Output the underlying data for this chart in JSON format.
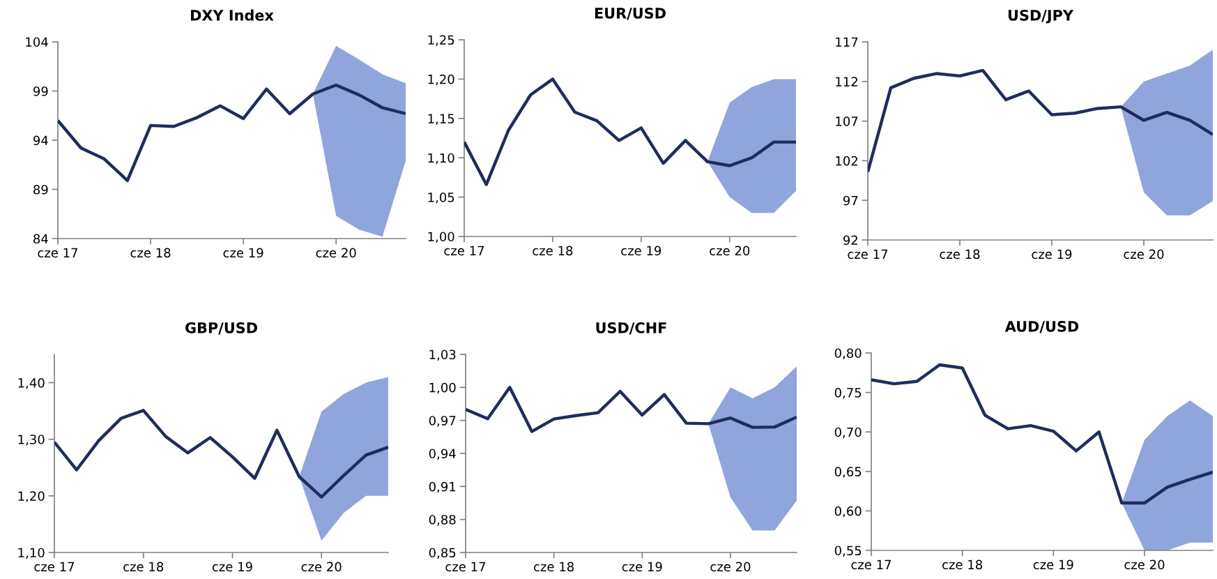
{
  "chart_data": [
    {
      "type": "line",
      "title": "DXY Index",
      "xlim": [
        "2017-06",
        "2021-03"
      ],
      "xticks": [
        {
          "value": "2017-06",
          "label": "cze 17"
        },
        {
          "value": "2018-06",
          "label": "cze 18"
        },
        {
          "value": "2019-06",
          "label": "cze 19"
        },
        {
          "value": "2020-06",
          "label": "cze 20"
        }
      ],
      "ylim": [
        84,
        104
      ],
      "yticks": [
        84,
        89,
        94,
        99,
        104
      ],
      "grid": false,
      "legend": false,
      "x": [
        "2017-06",
        "2017-09",
        "2017-12",
        "2018-03",
        "2018-06",
        "2018-09",
        "2018-12",
        "2019-03",
        "2019-06",
        "2019-09",
        "2019-12",
        "2020-03",
        "2020-06",
        "2020-09",
        "2020-12",
        "2021-03"
      ],
      "series": [
        {
          "color": "#1f2d5c",
          "values": [
            96.0,
            93.2,
            92.1,
            89.9,
            95.5,
            95.4,
            96.3,
            97.5,
            96.2,
            99.2,
            96.7,
            98.7,
            99.6,
            98.6,
            97.3,
            96.7
          ],
          "lower": [
            null,
            null,
            null,
            null,
            null,
            null,
            null,
            null,
            null,
            null,
            null,
            98.7,
            86.3,
            84.9,
            84.2,
            91.9
          ],
          "upper": [
            null,
            null,
            null,
            null,
            null,
            null,
            null,
            null,
            null,
            null,
            null,
            98.7,
            103.6,
            102.2,
            100.7,
            99.8
          ]
        }
      ]
    },
    {
      "type": "line",
      "title": "EUR/USD",
      "xlim": [
        "2017-06",
        "2021-03"
      ],
      "xticks": [
        {
          "value": "2017-06",
          "label": "cze 17"
        },
        {
          "value": "2018-06",
          "label": "cze 18"
        },
        {
          "value": "2019-06",
          "label": "cze 19"
        },
        {
          "value": "2020-06",
          "label": "cze 20"
        }
      ],
      "ylim": [
        1.0,
        1.25
      ],
      "yticks": [
        {
          "value": 1.0,
          "label": "1,00"
        },
        {
          "value": 1.05,
          "label": "1,05"
        },
        {
          "value": 1.1,
          "label": "1,10"
        },
        {
          "value": 1.15,
          "label": "1,15"
        },
        {
          "value": 1.2,
          "label": "1,20"
        },
        {
          "value": 1.25,
          "label": "1,25"
        }
      ],
      "grid": false,
      "legend": false,
      "x": [
        "2017-06",
        "2017-09",
        "2017-12",
        "2018-03",
        "2018-06",
        "2018-09",
        "2018-12",
        "2019-03",
        "2019-06",
        "2019-09",
        "2019-12",
        "2020-03",
        "2020-06",
        "2020-09",
        "2020-12",
        "2021-03"
      ],
      "series": [
        {
          "color": "#1f2d5c",
          "values": [
            1.12,
            1.066,
            1.135,
            1.18,
            1.2,
            1.158,
            1.147,
            1.122,
            1.138,
            1.093,
            1.122,
            1.095,
            1.09,
            1.1,
            1.12,
            1.12
          ],
          "lower": [
            null,
            null,
            null,
            null,
            null,
            null,
            null,
            null,
            null,
            null,
            null,
            1.095,
            1.05,
            1.03,
            1.03,
            1.058
          ],
          "upper": [
            null,
            null,
            null,
            null,
            null,
            null,
            null,
            null,
            null,
            null,
            null,
            1.095,
            1.17,
            1.19,
            1.2,
            1.2
          ]
        }
      ]
    },
    {
      "type": "line",
      "title": "USD/JPY",
      "xlim": [
        "2017-06",
        "2021-03"
      ],
      "xticks": [
        {
          "value": "2017-06",
          "label": "cze 17"
        },
        {
          "value": "2018-06",
          "label": "cze 18"
        },
        {
          "value": "2019-06",
          "label": "cze 19"
        },
        {
          "value": "2020-06",
          "label": "cze 20"
        }
      ],
      "ylim": [
        92,
        117
      ],
      "yticks": [
        92,
        97,
        102,
        107,
        112,
        117
      ],
      "grid": false,
      "legend": false,
      "x": [
        "2017-06",
        "2017-09",
        "2017-12",
        "2018-03",
        "2018-06",
        "2018-09",
        "2018-12",
        "2019-03",
        "2019-06",
        "2019-09",
        "2019-12",
        "2020-03",
        "2020-06",
        "2020-09",
        "2020-12",
        "2021-03"
      ],
      "series": [
        {
          "color": "#1f2d5c",
          "values": [
            100.6,
            111.2,
            112.4,
            113.0,
            112.7,
            113.4,
            109.7,
            110.8,
            107.8,
            108.0,
            108.6,
            108.8,
            107.1,
            108.1,
            107.1,
            105.3
          ],
          "lower": [
            null,
            null,
            null,
            null,
            null,
            null,
            null,
            null,
            null,
            null,
            null,
            108.8,
            98.0,
            95.1,
            95.1,
            96.9
          ],
          "upper": [
            null,
            null,
            null,
            null,
            null,
            null,
            null,
            null,
            null,
            null,
            null,
            108.8,
            112.0,
            113.0,
            114.0,
            116.0
          ]
        }
      ]
    },
    {
      "type": "line",
      "title": "GBP/USD",
      "xlim": [
        "2017-06",
        "2021-03"
      ],
      "xticks": [
        {
          "value": "2017-06",
          "label": "cze 17"
        },
        {
          "value": "2018-06",
          "label": "cze 18"
        },
        {
          "value": "2019-06",
          "label": "cze 19"
        },
        {
          "value": "2020-06",
          "label": "cze 20"
        }
      ],
      "ylim": [
        1.1,
        1.45
      ],
      "yticks": [
        {
          "value": 1.1,
          "label": "1,10"
        },
        {
          "value": 1.2,
          "label": "1,20"
        },
        {
          "value": 1.3,
          "label": "1,30"
        },
        {
          "value": 1.4,
          "label": "1,40"
        }
      ],
      "grid": false,
      "legend": false,
      "x": [
        "2017-06",
        "2017-09",
        "2017-12",
        "2018-03",
        "2018-06",
        "2018-09",
        "2018-12",
        "2019-03",
        "2019-06",
        "2019-09",
        "2019-12",
        "2020-03",
        "2020-06",
        "2020-09",
        "2020-12",
        "2021-03"
      ],
      "series": [
        {
          "color": "#1f2d5c",
          "values": [
            1.295,
            1.246,
            1.298,
            1.337,
            1.351,
            1.305,
            1.276,
            1.303,
            1.269,
            1.231,
            1.316,
            1.234,
            1.198,
            1.236,
            1.272,
            1.286
          ],
          "lower": [
            null,
            null,
            null,
            null,
            null,
            null,
            null,
            null,
            null,
            null,
            null,
            1.234,
            1.121,
            1.17,
            1.2,
            1.2
          ],
          "upper": [
            null,
            null,
            null,
            null,
            null,
            null,
            null,
            null,
            null,
            null,
            null,
            1.234,
            1.349,
            1.38,
            1.4,
            1.41
          ]
        }
      ]
    },
    {
      "type": "line",
      "title": "USD/CHF",
      "xlim": [
        "2017-06",
        "2021-03"
      ],
      "xticks": [
        {
          "value": "2017-06",
          "label": "cze 17"
        },
        {
          "value": "2018-06",
          "label": "cze 18"
        },
        {
          "value": "2019-06",
          "label": "cze 19"
        },
        {
          "value": "2020-06",
          "label": "cze 20"
        }
      ],
      "ylim": [
        0.85,
        1.03
      ],
      "yticks": [
        {
          "value": 0.85,
          "label": "0,85"
        },
        {
          "value": 0.88,
          "label": "0,88"
        },
        {
          "value": 0.91,
          "label": "0,91"
        },
        {
          "value": 0.94,
          "label": "0,94"
        },
        {
          "value": 0.97,
          "label": "0,97"
        },
        {
          "value": 1.0,
          "label": "1,00"
        },
        {
          "value": 1.03,
          "label": "1,03"
        }
      ],
      "grid": false,
      "legend": false,
      "x": [
        "2017-06",
        "2017-09",
        "2017-12",
        "2018-03",
        "2018-06",
        "2018-09",
        "2018-12",
        "2019-03",
        "2019-06",
        "2019-09",
        "2019-12",
        "2020-03",
        "2020-06",
        "2020-09",
        "2020-12",
        "2021-03"
      ],
      "series": [
        {
          "color": "#1f2d5c",
          "values": [
            0.98,
            0.9715,
            1.0,
            0.96,
            0.9713,
            0.9744,
            0.977,
            0.9964,
            0.9749,
            0.9935,
            0.9675,
            0.967,
            0.9722,
            0.9637,
            0.964,
            0.973
          ],
          "lower": [
            null,
            null,
            null,
            null,
            null,
            null,
            null,
            null,
            null,
            null,
            null,
            0.967,
            0.9,
            0.87,
            0.87,
            0.897
          ],
          "upper": [
            null,
            null,
            null,
            null,
            null,
            null,
            null,
            null,
            null,
            null,
            null,
            0.967,
            1.0,
            0.99,
            1.0,
            1.019
          ]
        }
      ]
    },
    {
      "type": "line",
      "title": "AUD/USD",
      "xlim": [
        "2017-06",
        "2021-03"
      ],
      "xticks": [
        {
          "value": "2017-06",
          "label": "cze 17"
        },
        {
          "value": "2018-06",
          "label": "cze 18"
        },
        {
          "value": "2019-06",
          "label": "cze 19"
        },
        {
          "value": "2020-06",
          "label": "cze 20"
        }
      ],
      "ylim": [
        0.55,
        0.8
      ],
      "yticks": [
        {
          "value": 0.55,
          "label": "0,55"
        },
        {
          "value": 0.6,
          "label": "0,60"
        },
        {
          "value": 0.65,
          "label": "0,65"
        },
        {
          "value": 0.7,
          "label": "0,70"
        },
        {
          "value": 0.75,
          "label": "0,75"
        },
        {
          "value": 0.8,
          "label": "0,80"
        }
      ],
      "grid": false,
      "legend": false,
      "x": [
        "2017-06",
        "2017-09",
        "2017-12",
        "2018-03",
        "2018-06",
        "2018-09",
        "2018-12",
        "2019-03",
        "2019-06",
        "2019-09",
        "2019-12",
        "2020-03",
        "2020-06",
        "2020-09",
        "2020-12",
        "2021-03"
      ],
      "series": [
        {
          "color": "#1f2d5c",
          "values": [
            0.766,
            0.761,
            0.764,
            0.785,
            0.781,
            0.721,
            0.704,
            0.708,
            0.701,
            0.676,
            0.7,
            0.61,
            0.61,
            0.63,
            0.64,
            0.649
          ],
          "lower": [
            null,
            null,
            null,
            null,
            null,
            null,
            null,
            null,
            null,
            null,
            null,
            0.61,
            0.55,
            0.55,
            0.56,
            0.56
          ],
          "upper": [
            null,
            null,
            null,
            null,
            null,
            null,
            null,
            null,
            null,
            null,
            null,
            0.61,
            0.69,
            0.72,
            0.74,
            0.72
          ]
        }
      ]
    }
  ]
}
